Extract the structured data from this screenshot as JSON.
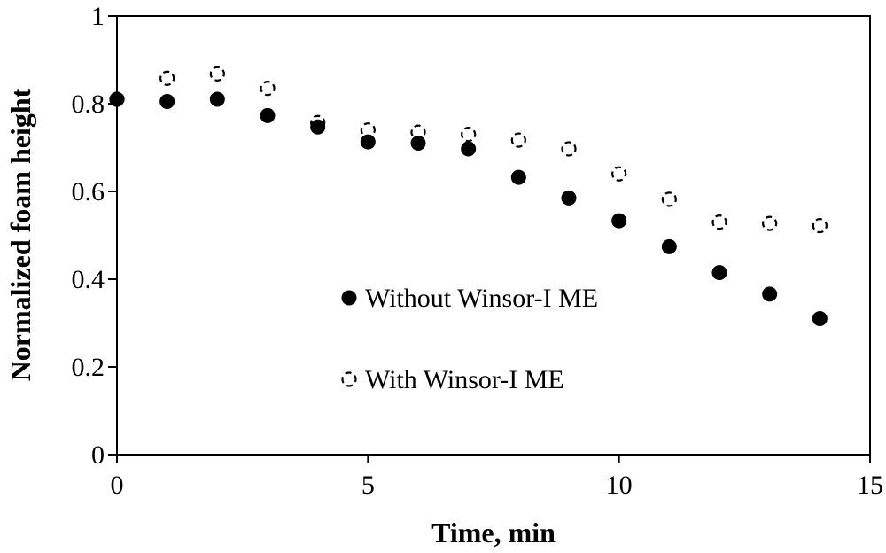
{
  "chart_data": {
    "type": "scatter",
    "title": "",
    "xlabel": "Time, min",
    "ylabel": "Normalized foam height",
    "xlim": [
      0,
      15
    ],
    "ylim": [
      0,
      1
    ],
    "xticks": [
      0,
      5,
      10,
      15
    ],
    "yticks": [
      0,
      0.2,
      0.4,
      0.6,
      0.8,
      1
    ],
    "xtick_labels": [
      "0",
      "5",
      "10",
      "15"
    ],
    "ytick_labels": [
      "0",
      "0.2",
      "0.4",
      "0.6",
      "0.8",
      "1"
    ],
    "grid": false,
    "legend_position": "center-left",
    "series": [
      {
        "name": "Without Winsor-I ME",
        "marker": "filled-circle",
        "color": "#000000",
        "x": [
          0,
          1,
          2,
          3,
          4,
          5,
          6,
          7,
          8,
          9,
          10,
          11,
          12,
          13,
          14
        ],
        "y": [
          0.81,
          0.805,
          0.81,
          0.773,
          0.747,
          0.713,
          0.71,
          0.697,
          0.632,
          0.585,
          0.533,
          0.474,
          0.415,
          0.366,
          0.31
        ]
      },
      {
        "name": "With Winsor-I ME",
        "marker": "dashed-open-circle",
        "color": "#000000",
        "x": [
          0,
          1,
          2,
          3,
          4,
          5,
          6,
          7,
          8,
          9,
          10,
          11,
          12,
          13,
          14
        ],
        "y": [
          0.81,
          0.858,
          0.868,
          0.835,
          0.757,
          0.74,
          0.735,
          0.73,
          0.717,
          0.697,
          0.64,
          0.582,
          0.53,
          0.527,
          0.522
        ]
      }
    ]
  }
}
